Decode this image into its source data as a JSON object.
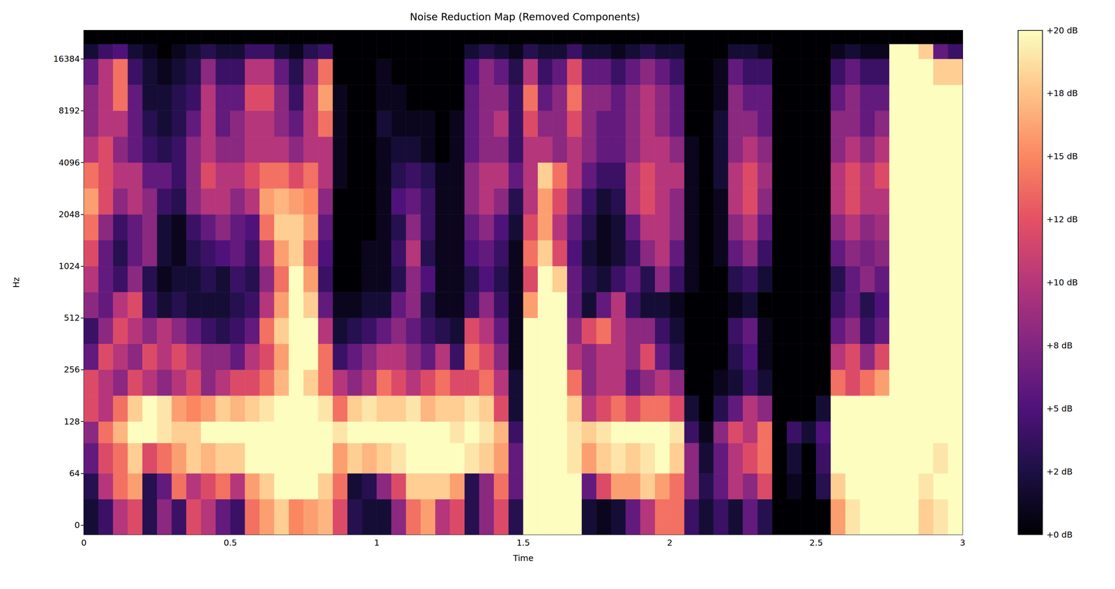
{
  "chart_data": {
    "type": "heatmap",
    "title": "Noise Reduction Map (Removed Components)",
    "x_label": "Time",
    "y_label": "Hz",
    "log": "y",
    "xlim": [
      0,
      3
    ],
    "xticks": [
      0,
      0.5,
      1,
      1.5,
      2,
      2.5,
      3
    ],
    "ylim": [
      -11.7,
      24011.7
    ],
    "yticks": [
      0,
      64,
      128,
      256,
      512,
      1024,
      2048,
      4096,
      8192,
      16384
    ],
    "time_edges": [
      0,
      0.05,
      0.1,
      0.15,
      0.2,
      0.25,
      0.3,
      0.35,
      0.4,
      0.45,
      0.5,
      0.55,
      0.6,
      0.65,
      0.7,
      0.75,
      0.8,
      0.85,
      0.9,
      0.95,
      1,
      1.05,
      1.1,
      1.15,
      1.2,
      1.25,
      1.3,
      1.35,
      1.4,
      1.45,
      1.5,
      1.55,
      1.6,
      1.65,
      1.7,
      1.75,
      1.8,
      1.85,
      1.9,
      1.95,
      2,
      2.05,
      2.1,
      2.15,
      2.2,
      2.25,
      2.3,
      2.35,
      2.4,
      2.45,
      2.5,
      2.55,
      2.6,
      2.65,
      2.7,
      2.75,
      2.8,
      2.85,
      2.9,
      2.95,
      3
    ],
    "freq_edges": [
      -11.7,
      32,
      64,
      96,
      128,
      181,
      256,
      362,
      512,
      724,
      1024,
      1448,
      2048,
      2896,
      4096,
      5793,
      8192,
      11585,
      16384,
      20000,
      24011.7
    ],
    "cells": [
      [
        2,
        4,
        10,
        12,
        3,
        8,
        4,
        12,
        10,
        6,
        4,
        14,
        16,
        18,
        15,
        16,
        17,
        12,
        3,
        2,
        2,
        8,
        14,
        16,
        10,
        12,
        3,
        8,
        12,
        3,
        20,
        20,
        20,
        20,
        2,
        1,
        2,
        6,
        10,
        14,
        14,
        4,
        2,
        4,
        2,
        6,
        3,
        0,
        0,
        0,
        0,
        16,
        19,
        20,
        20,
        20,
        20,
        18,
        19,
        20
      ],
      [
        3,
        10,
        14,
        16,
        3,
        6,
        14,
        10,
        12,
        14,
        10,
        16,
        18,
        20,
        20,
        20,
        18,
        14,
        2,
        3,
        8,
        12,
        18,
        18,
        18,
        16,
        3,
        8,
        14,
        6,
        20,
        20,
        20,
        20,
        6,
        12,
        16,
        16,
        18,
        16,
        14,
        8,
        3,
        6,
        10,
        8,
        12,
        0,
        1,
        0,
        3,
        18,
        20,
        20,
        20,
        20,
        20,
        19,
        20,
        20
      ],
      [
        6,
        12,
        14,
        18,
        12,
        14,
        16,
        18,
        17,
        18,
        18,
        20,
        20,
        20,
        20,
        20,
        20,
        16,
        18,
        17,
        18,
        19,
        20,
        20,
        20,
        20,
        19,
        18,
        16,
        6,
        20,
        20,
        20,
        19,
        16,
        18,
        19,
        18,
        19,
        20,
        18,
        8,
        2,
        6,
        10,
        12,
        14,
        0,
        2,
        0,
        4,
        20,
        20,
        20,
        20,
        20,
        20,
        20,
        19,
        20
      ],
      [
        8,
        14,
        17,
        20,
        20,
        19,
        18,
        18,
        20,
        20,
        20,
        20,
        20,
        20,
        20,
        20,
        20,
        19,
        20,
        20,
        20,
        20,
        20,
        20,
        20,
        19,
        20,
        19,
        17,
        4,
        20,
        20,
        20,
        19,
        18,
        19,
        20,
        20,
        20,
        20,
        19,
        4,
        1,
        8,
        12,
        10,
        14,
        0,
        4,
        2,
        5,
        20,
        20,
        20,
        20,
        20,
        20,
        20,
        20,
        20
      ],
      [
        12,
        10,
        14,
        18,
        20,
        19,
        16,
        15,
        16,
        18,
        17,
        18,
        19,
        20,
        20,
        20,
        19,
        14,
        18,
        19,
        18,
        18,
        19,
        17,
        18,
        18,
        19,
        18,
        12,
        2,
        20,
        20,
        20,
        18,
        10,
        12,
        14,
        12,
        14,
        14,
        12,
        2,
        0,
        3,
        6,
        10,
        8,
        0,
        0,
        0,
        2,
        20,
        20,
        20,
        20,
        20,
        20,
        20,
        20,
        20
      ],
      [
        12,
        10,
        8,
        12,
        10,
        8,
        10,
        12,
        8,
        10,
        12,
        12,
        14,
        17,
        20,
        18,
        14,
        10,
        8,
        10,
        14,
        12,
        10,
        12,
        14,
        12,
        12,
        14,
        10,
        2,
        20,
        20,
        20,
        14,
        8,
        10,
        10,
        6,
        8,
        10,
        8,
        0,
        0,
        1,
        2,
        4,
        2,
        0,
        0,
        0,
        0,
        14,
        12,
        14,
        16,
        20,
        20,
        20,
        20,
        20
      ],
      [
        6,
        12,
        10,
        8,
        12,
        10,
        12,
        10,
        8,
        8,
        6,
        10,
        12,
        16,
        20,
        20,
        14,
        4,
        6,
        8,
        10,
        10,
        8,
        6,
        10,
        4,
        14,
        12,
        8,
        1,
        20,
        20,
        20,
        10,
        8,
        10,
        10,
        8,
        12,
        6,
        3,
        0,
        0,
        0,
        3,
        5,
        1,
        0,
        0,
        0,
        0,
        10,
        12,
        8,
        12,
        20,
        20,
        20,
        20,
        20
      ],
      [
        4,
        8,
        12,
        10,
        8,
        10,
        8,
        6,
        4,
        3,
        4,
        6,
        14,
        18,
        20,
        20,
        10,
        2,
        3,
        4,
        6,
        8,
        6,
        4,
        3,
        2,
        12,
        10,
        6,
        1,
        20,
        20,
        20,
        8,
        12,
        14,
        10,
        8,
        8,
        4,
        2,
        0,
        0,
        0,
        4,
        6,
        1,
        0,
        0,
        0,
        0,
        6,
        8,
        4,
        6,
        20,
        20,
        20,
        20,
        20
      ],
      [
        8,
        6,
        10,
        12,
        4,
        2,
        3,
        2,
        2,
        2,
        3,
        4,
        10,
        16,
        20,
        18,
        6,
        1,
        1,
        2,
        2,
        6,
        8,
        3,
        1,
        1,
        4,
        8,
        4,
        1,
        16,
        20,
        20,
        6,
        2,
        6,
        10,
        4,
        2,
        2,
        1,
        0,
        0,
        0,
        1,
        2,
        0,
        0,
        0,
        0,
        0,
        4,
        6,
        3,
        5,
        20,
        20,
        20,
        20,
        20
      ],
      [
        10,
        6,
        4,
        8,
        3,
        1,
        2,
        2,
        3,
        2,
        4,
        3,
        8,
        14,
        20,
        16,
        4,
        0,
        0,
        1,
        1,
        3,
        8,
        5,
        1,
        1,
        3,
        5,
        3,
        1,
        12,
        20,
        18,
        6,
        3,
        2,
        4,
        6,
        3,
        8,
        4,
        1,
        0,
        0,
        3,
        4,
        2,
        0,
        0,
        0,
        0,
        3,
        6,
        8,
        6,
        20,
        20,
        20,
        20,
        20
      ],
      [
        12,
        6,
        3,
        6,
        8,
        2,
        1,
        3,
        4,
        5,
        6,
        4,
        10,
        16,
        18,
        14,
        5,
        0,
        0,
        1,
        1,
        4,
        10,
        3,
        1,
        1,
        5,
        6,
        4,
        1,
        14,
        18,
        12,
        5,
        2,
        1,
        2,
        4,
        8,
        10,
        6,
        1,
        0,
        1,
        6,
        8,
        4,
        0,
        0,
        0,
        0,
        6,
        8,
        7,
        8,
        20,
        20,
        20,
        20,
        20
      ],
      [
        14,
        8,
        4,
        6,
        8,
        2,
        1,
        4,
        6,
        8,
        6,
        5,
        14,
        18,
        18,
        16,
        6,
        0,
        0,
        0,
        1,
        3,
        8,
        4,
        1,
        1,
        6,
        8,
        5,
        2,
        12,
        16,
        10,
        6,
        3,
        1,
        2,
        6,
        10,
        10,
        8,
        1,
        0,
        1,
        8,
        10,
        6,
        0,
        0,
        0,
        0,
        8,
        10,
        8,
        9,
        20,
        20,
        20,
        20,
        20
      ],
      [
        16,
        12,
        8,
        10,
        8,
        4,
        3,
        8,
        10,
        10,
        8,
        10,
        16,
        17,
        16,
        15,
        8,
        0,
        0,
        0,
        1,
        5,
        6,
        4,
        1,
        1,
        8,
        10,
        8,
        3,
        10,
        16,
        12,
        8,
        4,
        2,
        3,
        10,
        12,
        10,
        8,
        1,
        0,
        1,
        10,
        12,
        8,
        0,
        0,
        0,
        0,
        10,
        12,
        10,
        10,
        20,
        20,
        20,
        20,
        20
      ],
      [
        14,
        12,
        10,
        10,
        6,
        6,
        4,
        8,
        12,
        10,
        10,
        12,
        14,
        14,
        12,
        14,
        10,
        1,
        0,
        0,
        1,
        3,
        4,
        3,
        1,
        1,
        8,
        10,
        10,
        6,
        10,
        18,
        14,
        10,
        6,
        4,
        4,
        10,
        12,
        10,
        10,
        1,
        0,
        2,
        10,
        12,
        9,
        0,
        0,
        0,
        0,
        10,
        12,
        10,
        12,
        20,
        20,
        20,
        20,
        20
      ],
      [
        10,
        12,
        8,
        6,
        4,
        3,
        4,
        8,
        10,
        8,
        8,
        10,
        10,
        10,
        8,
        10,
        10,
        1,
        0,
        0,
        1,
        2,
        2,
        1,
        0,
        1,
        6,
        8,
        8,
        4,
        10,
        10,
        8,
        10,
        8,
        6,
        6,
        8,
        10,
        10,
        8,
        1,
        0,
        2,
        8,
        10,
        8,
        0,
        0,
        0,
        0,
        8,
        10,
        8,
        10,
        20,
        20,
        20,
        20,
        20
      ],
      [
        8,
        10,
        10,
        6,
        3,
        2,
        3,
        6,
        10,
        6,
        8,
        10,
        10,
        8,
        6,
        10,
        14,
        1,
        0,
        0,
        2,
        1,
        1,
        1,
        0,
        1,
        6,
        8,
        10,
        4,
        12,
        8,
        8,
        12,
        8,
        6,
        6,
        8,
        10,
        8,
        6,
        0,
        0,
        2,
        8,
        8,
        6,
        0,
        0,
        0,
        0,
        8,
        8,
        6,
        8,
        20,
        20,
        20,
        20,
        20
      ],
      [
        8,
        10,
        14,
        6,
        2,
        2,
        3,
        4,
        10,
        6,
        6,
        12,
        12,
        8,
        4,
        10,
        16,
        1,
        0,
        0,
        1,
        1,
        0,
        0,
        0,
        0,
        6,
        8,
        8,
        4,
        14,
        6,
        8,
        14,
        8,
        8,
        6,
        8,
        10,
        8,
        6,
        0,
        0,
        1,
        8,
        6,
        6,
        0,
        0,
        0,
        0,
        6,
        8,
        6,
        6,
        20,
        20,
        20,
        20,
        20
      ],
      [
        6,
        10,
        14,
        4,
        2,
        1,
        2,
        3,
        8,
        4,
        4,
        10,
        10,
        6,
        3,
        8,
        14,
        0,
        0,
        0,
        1,
        0,
        0,
        0,
        0,
        0,
        5,
        8,
        6,
        3,
        10,
        4,
        6,
        12,
        6,
        6,
        4,
        6,
        8,
        6,
        4,
        0,
        0,
        1,
        6,
        4,
        4,
        0,
        0,
        0,
        0,
        4,
        6,
        4,
        4,
        20,
        20,
        20,
        18,
        18
      ],
      [
        2,
        4,
        5,
        2,
        1,
        0,
        1,
        2,
        3,
        2,
        2,
        4,
        4,
        2,
        1,
        3,
        4,
        0,
        0,
        0,
        0,
        0,
        0,
        0,
        0,
        0,
        2,
        3,
        2,
        1,
        3,
        2,
        2,
        4,
        2,
        2,
        1,
        2,
        3,
        2,
        2,
        0,
        0,
        0,
        2,
        2,
        1,
        0,
        0,
        0,
        0,
        1,
        2,
        1,
        1,
        20,
        20,
        18,
        6,
        4
      ],
      [
        0,
        0,
        0,
        0,
        0,
        0,
        0,
        0,
        0,
        0,
        0,
        0,
        0,
        0,
        0,
        0,
        0,
        0,
        0,
        0,
        0,
        0,
        0,
        0,
        0,
        0,
        0,
        0,
        0,
        0,
        0,
        0,
        0,
        0,
        0,
        0,
        0,
        0,
        0,
        0,
        0,
        0,
        0,
        0,
        0,
        0,
        0,
        0,
        0,
        0,
        0,
        0,
        0,
        0,
        0,
        0,
        0,
        0,
        0,
        0
      ]
    ],
    "colorbar": {
      "range": [
        0,
        20
      ],
      "ticks": [
        {
          "value": 0,
          "label": "+0 dB"
        },
        {
          "value": 2.5,
          "label": "+2 dB"
        },
        {
          "value": 5,
          "label": "+5 dB"
        },
        {
          "value": 7.5,
          "label": "+8 dB"
        },
        {
          "value": 10,
          "label": "+10 dB"
        },
        {
          "value": 12.5,
          "label": "+12 dB"
        },
        {
          "value": 15,
          "label": "+15 dB"
        },
        {
          "value": 17.5,
          "label": "+18 dB"
        },
        {
          "value": 20,
          "label": "+20 dB"
        }
      ]
    }
  }
}
